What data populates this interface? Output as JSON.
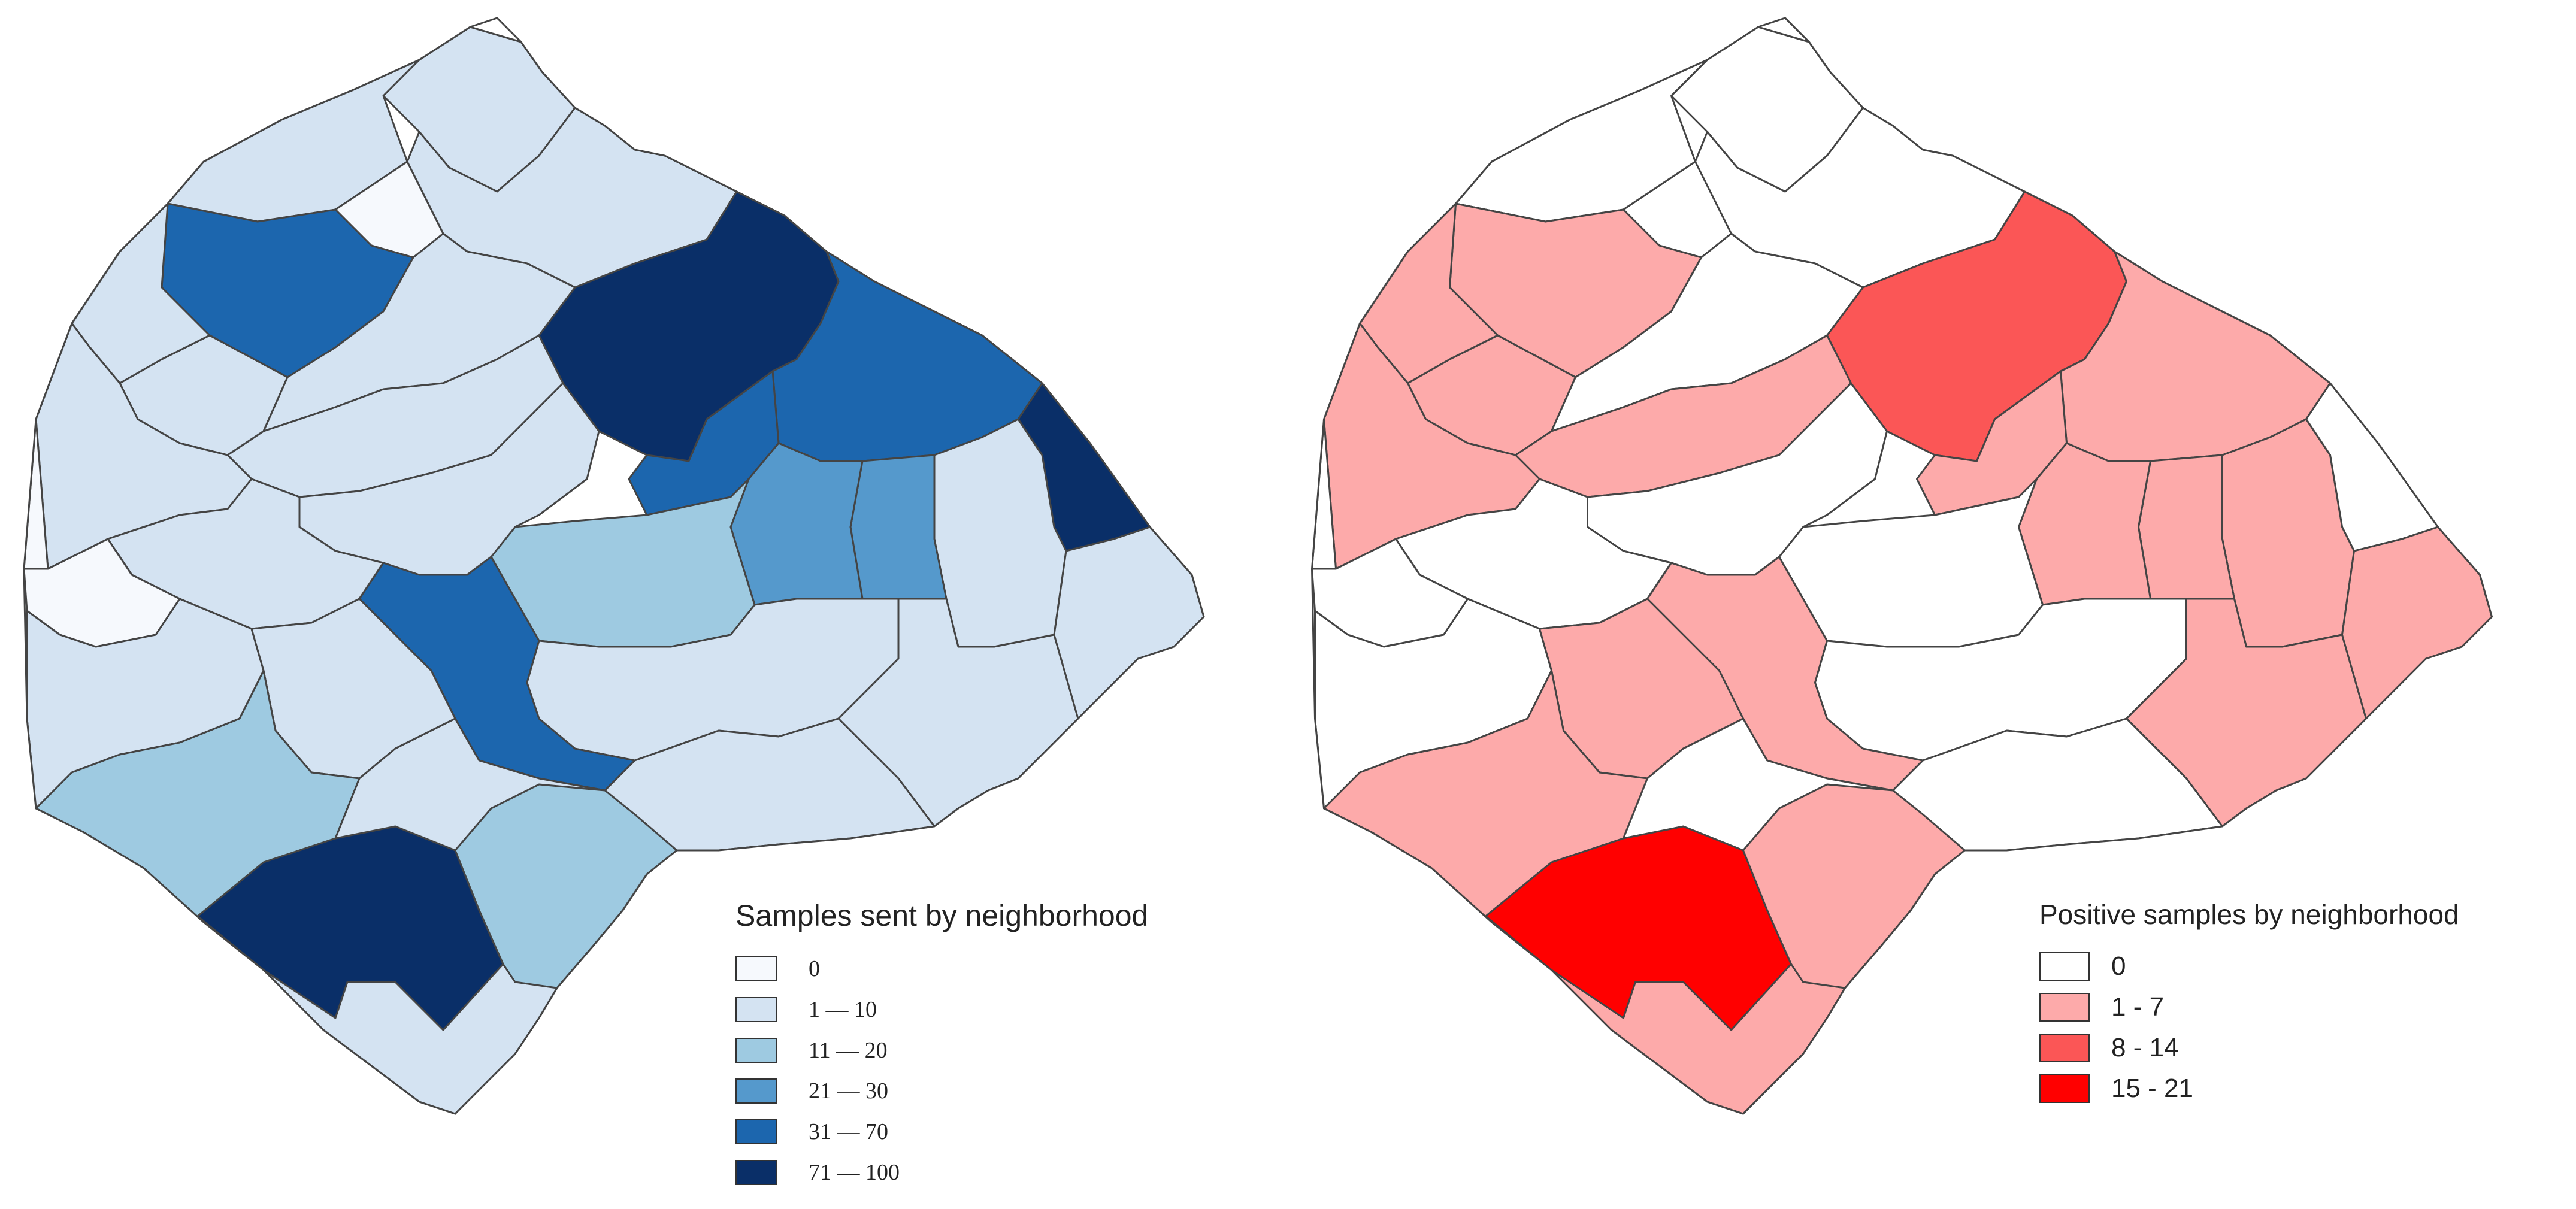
{
  "maps": [
    {
      "id": "samples_sent",
      "legend": {
        "title": "Samples sent by neighborhood",
        "classes": [
          {
            "label": "0",
            "color": "#f6f9fd"
          },
          {
            "label": "1 — 10",
            "color": "#d4e3f2"
          },
          {
            "label": "11 — 20",
            "color": "#9ecae1"
          },
          {
            "label": "21 — 30",
            "color": "#5599cc"
          },
          {
            "label": "31 — 70",
            "color": "#1c66ae"
          },
          {
            "label": "71 — 100",
            "color": "#0a2f68"
          }
        ]
      }
    },
    {
      "id": "positive_samples",
      "legend": {
        "title": "Positive samples by neighborhood",
        "classes": [
          {
            "label": "0",
            "color": "#ffffff"
          },
          {
            "label": "1 - 7",
            "color": "#fdaaaa"
          },
          {
            "label": "8 - 14",
            "color": "#fb5656"
          },
          {
            "label": "15 - 21",
            "color": "#ff0000"
          }
        ]
      }
    }
  ],
  "colors": {
    "boundary": "#444444",
    "background": "#ffffff"
  }
}
